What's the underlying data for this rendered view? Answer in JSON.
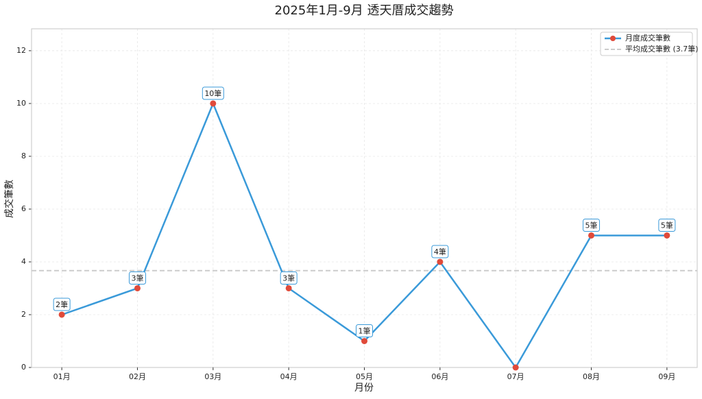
{
  "chart_data": {
    "type": "line",
    "title": "2025年1月-9月 透天厝成交趨勢",
    "x_label": "月份",
    "y_label": "成交筆數",
    "categories": [
      "01月",
      "02月",
      "03月",
      "04月",
      "05月",
      "06月",
      "07月",
      "08月",
      "09月"
    ],
    "series": [
      {
        "name": "月度成交筆數",
        "color": "#3a9ad9",
        "marker_color": "#e04a3a",
        "values": [
          2,
          3,
          10,
          3,
          1,
          4,
          0,
          5,
          5
        ],
        "value_labels": [
          "2筆",
          "3筆",
          "10筆",
          "3筆",
          "1筆",
          "4筆",
          null,
          "5筆",
          "5筆"
        ]
      }
    ],
    "average": {
      "name": "平均成交筆數 (3.7筆)",
      "value": 3.67,
      "color": "#cccccc"
    },
    "ylim": [
      0,
      12.83
    ],
    "yticks": [
      0,
      2,
      4,
      6,
      8,
      10,
      12
    ],
    "grid": true,
    "legend": "upper right"
  }
}
